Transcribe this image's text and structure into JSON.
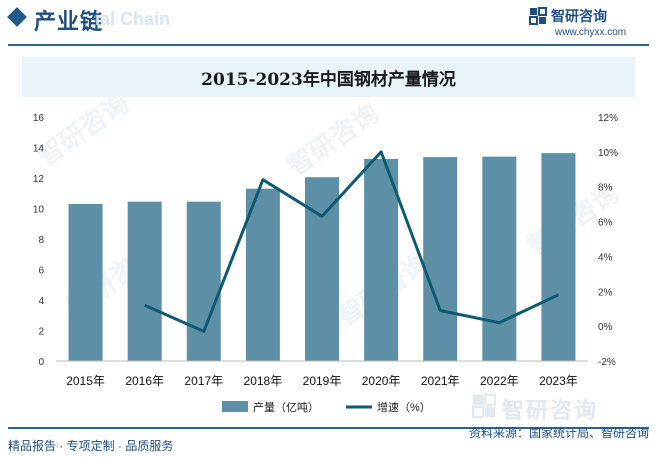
{
  "header": {
    "title": "产业链",
    "ghost_text": "ial Chain",
    "brand_name": "智研咨询",
    "brand_url": "www.chyxx.com"
  },
  "watermark": {
    "text": "智研咨询"
  },
  "chart_data": {
    "type": "bar+line",
    "title": "2015-2023年中国钢材产量情况",
    "categories": [
      "2015年",
      "2016年",
      "2017年",
      "2018年",
      "2019年",
      "2020年",
      "2021年",
      "2022年",
      "2023年"
    ],
    "series": [
      {
        "name": "产量（亿吨）",
        "type": "bar",
        "axis": "left",
        "color": "#5d90a6",
        "values": [
          10.3,
          10.45,
          10.45,
          11.3,
          12.05,
          13.25,
          13.37,
          13.4,
          13.63
        ]
      },
      {
        "name": "增速（%）",
        "type": "line",
        "axis": "right",
        "color": "#0f5a73",
        "values": [
          null,
          1.2,
          -0.3,
          8.4,
          6.3,
          10.0,
          0.9,
          0.2,
          1.8
        ]
      }
    ],
    "y_left": {
      "min": 0,
      "max": 16,
      "step": 2,
      "ticks": [
        "0",
        "2",
        "4",
        "6",
        "8",
        "10",
        "12",
        "14",
        "16"
      ]
    },
    "y_right": {
      "min": -2,
      "max": 12,
      "step": 2,
      "ticks": [
        "-2%",
        "0%",
        "2%",
        "4%",
        "6%",
        "8%",
        "10%",
        "12%"
      ]
    },
    "grid": false,
    "legend_position": "bottom"
  },
  "footer": {
    "left_text": "精品报告 · 专项定制 · 品质服务",
    "right_text": "资料来源：国家统计局、智研咨询",
    "brand_name": "智研咨询"
  }
}
